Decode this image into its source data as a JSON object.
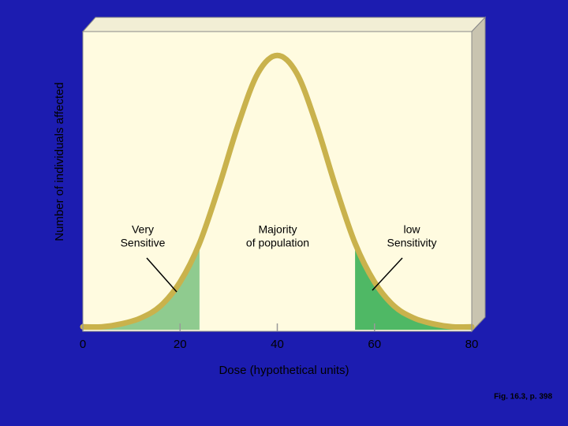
{
  "chart_data": {
    "type": "line",
    "y_label": "Number of individuals affected",
    "x_label": "Dose (hypothetical units)",
    "x": [
      0,
      4,
      8,
      12,
      16,
      20,
      24,
      28,
      32,
      36,
      40,
      44,
      48,
      52,
      56,
      60,
      64,
      68,
      72,
      76,
      80
    ],
    "series": [
      {
        "color": "#c9b24c",
        "values": [
          1,
          1,
          2,
          4,
          8,
          16,
          29,
          48,
          69,
          86,
          92,
          86,
          69,
          48,
          29,
          16,
          8,
          4,
          2,
          1,
          1
        ]
      }
    ],
    "bands": [
      {
        "from": 0,
        "to": 24,
        "color": "#8fcb8f"
      },
      {
        "from": 56,
        "to": 80,
        "color": "#4fb865"
      }
    ],
    "xlim": [
      0,
      80
    ],
    "xticks": [
      0,
      20,
      40,
      60,
      80
    ],
    "ylim": [
      0,
      100
    ],
    "annotations": [
      [
        "Very",
        "Sensitive"
      ],
      [
        "Majority",
        "of population"
      ],
      [
        "low",
        "Sensitivity"
      ]
    ],
    "footer": "Fig. 16.3, p. 398"
  }
}
